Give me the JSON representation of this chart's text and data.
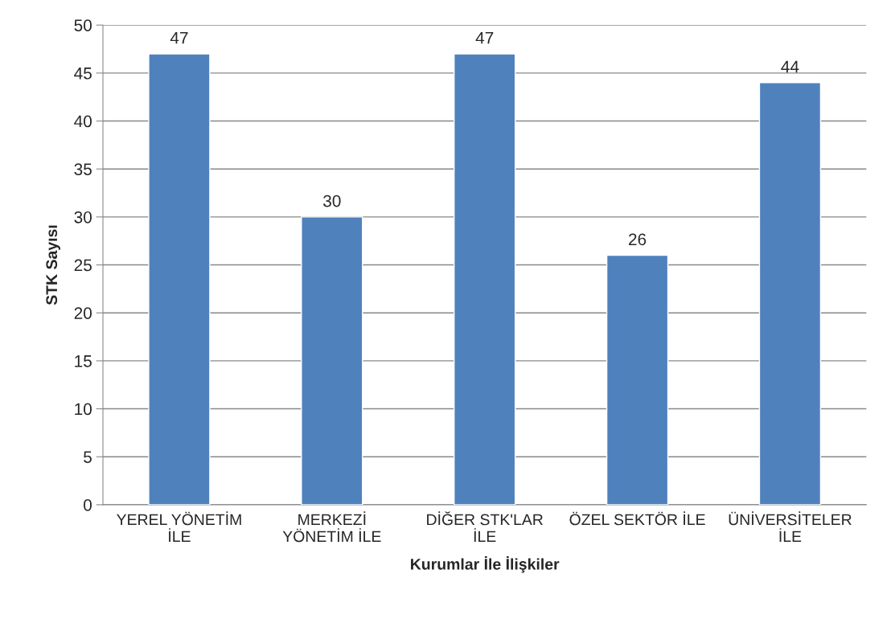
{
  "chart_data": {
    "type": "bar",
    "xlabel": "Kurumlar İle İlişkiler",
    "ylabel": "STK Sayısı",
    "categories": [
      "YEREL YÖNETİM\nİLE",
      "MERKEZİ\nYÖNETİM İLE",
      "DİĞER STK'LAR\nİLE",
      "ÖZEL SEKTÖR İLE",
      "ÜNİVERSİTELER\nİLE"
    ],
    "values": [
      47,
      30,
      47,
      26,
      44
    ],
    "color": "#4f81bd",
    "ylim": [
      0,
      50
    ],
    "yticks": [
      0,
      5,
      10,
      15,
      20,
      25,
      30,
      35,
      40,
      45,
      50
    ],
    "grid": "y",
    "data_labels": true
  }
}
